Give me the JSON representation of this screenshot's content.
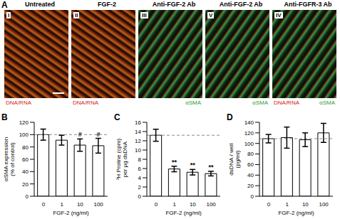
{
  "panel_a": {
    "label": "A",
    "images": [
      {
        "numeral": "I",
        "title": "Untreated",
        "stains": [
          "DNA/RNA"
        ]
      },
      {
        "numeral": "II",
        "title": "FGF-2",
        "stains": [
          "DNA/RNA"
        ]
      },
      {
        "numeral": "III",
        "title": "Anti-FGF-2 Ab",
        "stains": [
          "αSMA"
        ]
      },
      {
        "numeral": "V",
        "title": "Anti-FGF-2 Ab",
        "stains": [
          "αSMA"
        ]
      },
      {
        "numeral": "IV",
        "title": "Anti-FGFR-3 Ab",
        "stains": [
          "DNA/RNA",
          "αSMA"
        ]
      }
    ],
    "stain_colors": {
      "DNA/RNA": "#d42020",
      "αSMA": "#2aa02a"
    }
  },
  "chart_data": [
    {
      "panel": "B",
      "type": "bar",
      "x_label": "FGF-2 (ng/ml)",
      "y_label": "αSMA expression (% of control)",
      "categories": [
        "0",
        "1",
        "10",
        "100"
      ],
      "values": [
        100,
        91,
        83,
        82
      ],
      "errors": [
        9,
        8,
        10,
        12
      ],
      "annotations": [
        null,
        null,
        "#",
        "#"
      ],
      "reference_line": 100,
      "color": "#ffffff",
      "ylim": [
        0,
        120
      ],
      "yticks": [
        0,
        20,
        40,
        60,
        80,
        100,
        120
      ]
    },
    {
      "panel": "C",
      "type": "bar",
      "x_label": "FGF-2 (ng/ml)",
      "y_label": "³H Proline (cpm) per µg dsDNA",
      "categories": [
        "0",
        "1",
        "10",
        "100"
      ],
      "values": [
        13.2,
        5.9,
        5.2,
        4.9
      ],
      "errors": [
        1.3,
        0.6,
        0.6,
        0.5
      ],
      "annotations": [
        null,
        "**",
        "**",
        "**"
      ],
      "reference_line": 13.2,
      "color": "#ffffff",
      "ylim": [
        0,
        16
      ],
      "yticks": [
        0,
        2,
        4,
        6,
        8,
        10,
        12,
        14,
        16
      ]
    },
    {
      "panel": "D",
      "type": "bar",
      "x_label": "FGF-2 (ng/ml)",
      "y_label": "dsDNA / well (pg/ml)",
      "categories": [
        "0",
        "1",
        "10",
        "100"
      ],
      "values": [
        109,
        111,
        107,
        120
      ],
      "errors": [
        8,
        20,
        13,
        18
      ],
      "annotations": [
        null,
        null,
        null,
        null
      ],
      "reference_line": 109,
      "color": "#ffffff",
      "ylim": [
        0,
        140
      ],
      "yticks": [
        0,
        20,
        40,
        60,
        80,
        100,
        120,
        140
      ]
    }
  ]
}
